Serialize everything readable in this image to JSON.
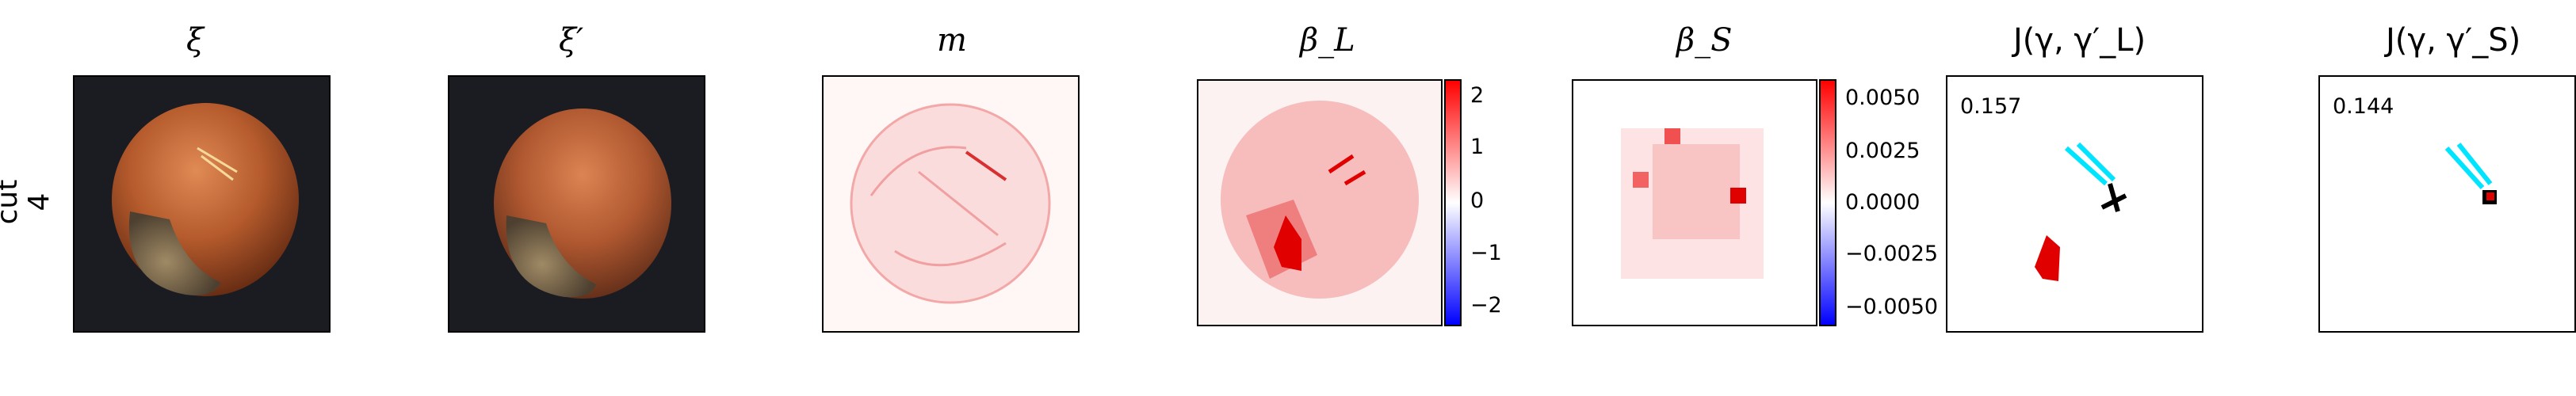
{
  "row_label": [
    "cut",
    "4"
  ],
  "panels": [
    {
      "title": "ξ"
    },
    {
      "title": "ξ′"
    },
    {
      "title": "m"
    },
    {
      "title": "β_L"
    },
    {
      "title": "β_S"
    },
    {
      "title": "J(γ, γ′_L)"
    },
    {
      "title": "J(γ, γ′_S)"
    }
  ],
  "colorbar_L": {
    "ticks": [
      "2",
      "1",
      "0",
      "−1",
      "−2"
    ]
  },
  "colorbar_S": {
    "ticks": [
      "0.0050",
      "0.0025",
      "0.0000",
      "−0.0025",
      "−0.0050"
    ]
  },
  "scores": {
    "J_L": "0.157",
    "J_S": "0.144"
  },
  "colors": {
    "positive": "#ff0000",
    "negative": "#0000ff",
    "highlight": "#00e5ff",
    "dark_bg": "#1b1c22"
  }
}
